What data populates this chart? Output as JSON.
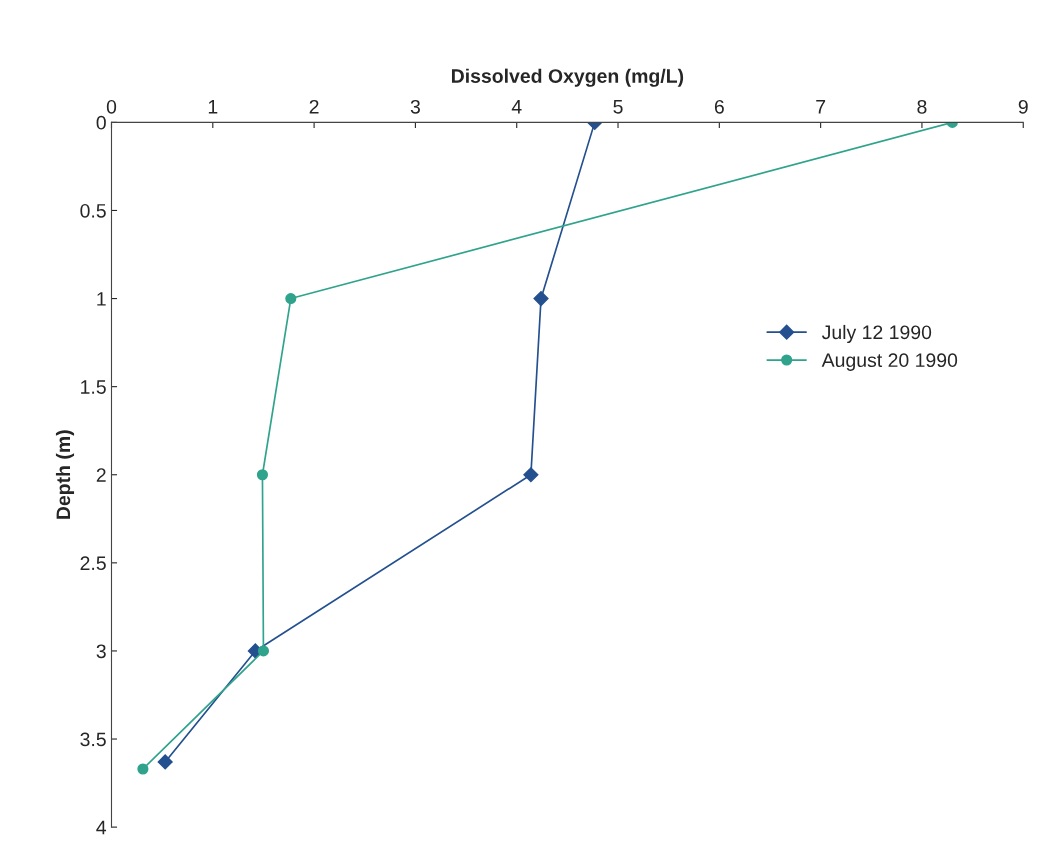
{
  "chart_data": {
    "type": "line",
    "xlabel": "Dissolved Oxygen (mg/L)",
    "ylabel": "Depth (m)",
    "xlim": [
      0,
      9
    ],
    "xticks": [
      0,
      1,
      2,
      3,
      4,
      5,
      6,
      7,
      8,
      9
    ],
    "ylim": [
      4,
      0
    ],
    "yticks": [
      0,
      0.5,
      1,
      1.5,
      2,
      2.5,
      3,
      3.5,
      4
    ],
    "grid": false,
    "legend": "right",
    "series": [
      {
        "name": "July 12 1990",
        "color": "#24508f",
        "marker": "diamond",
        "x": [
          4.77,
          4.24,
          4.14,
          1.42,
          0.53
        ],
        "values": [
          0,
          1,
          2,
          3,
          3.63
        ]
      },
      {
        "name": "August 20 1990",
        "color": "#2fa38c",
        "marker": "circle",
        "x": [
          8.3,
          1.77,
          1.49,
          1.5,
          0.31
        ],
        "values": [
          0,
          1,
          2,
          3,
          3.67
        ]
      }
    ]
  }
}
